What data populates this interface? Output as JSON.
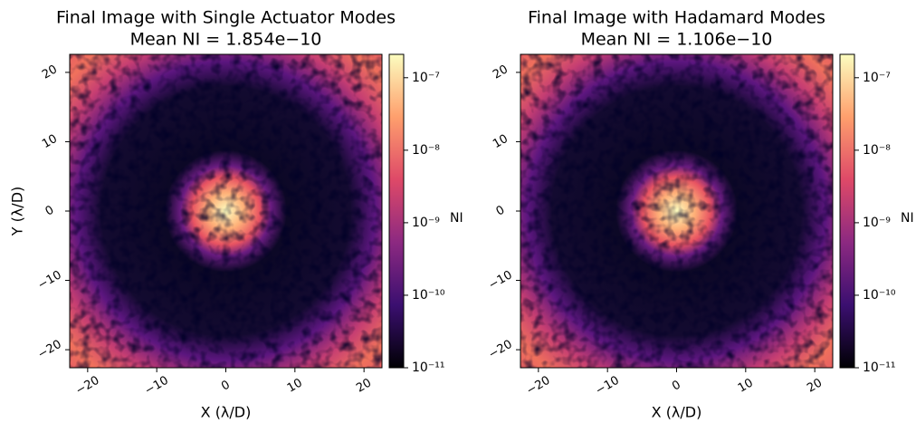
{
  "chart_data": [
    {
      "type": "heatmap",
      "title": "Final Image with Single Actuator Modes",
      "subtitle": "Mean NI = 1.854e−10",
      "xlabel": "X (λ/D)",
      "ylabel": "Y (λ/D)",
      "xlim": [
        -22.6,
        22.6
      ],
      "ylim": [
        -22.6,
        22.6
      ],
      "xticks": [
        {
          "value": -20,
          "label": "−20"
        },
        {
          "value": -10,
          "label": "−10"
        },
        0,
        10,
        20
      ],
      "yticks": [
        {
          "value": -20,
          "label": "−20"
        },
        {
          "value": -10,
          "label": "−10"
        },
        0,
        10,
        20
      ],
      "colorbar": {
        "label": "NI",
        "log_scale": true,
        "lim": [
          1e-11,
          2.1e-07
        ],
        "ticks": [
          {
            "value": 1e-11,
            "label": "10⁻¹¹"
          },
          {
            "value": 1e-10,
            "label": "10⁻¹⁰"
          },
          {
            "value": 1e-09,
            "label": "10⁻⁹"
          },
          {
            "value": 1e-08,
            "label": "10⁻⁸"
          },
          {
            "value": 1e-07,
            "label": "10⁻⁷"
          }
        ],
        "colormap": [
          "#000004",
          "#3b0f70",
          "#8c2981",
          "#de4968",
          "#fe9f6d",
          "#fcfdbf"
        ]
      }
    },
    {
      "type": "heatmap",
      "title": "Final Image with Hadamard Modes",
      "subtitle": "Mean NI = 1.106e−10",
      "xlabel": "X (λ/D)",
      "xlim": [
        -22.6,
        22.6
      ],
      "ylim": [
        -22.6,
        22.6
      ],
      "xticks": [
        {
          "value": -20,
          "label": "−20"
        },
        {
          "value": -10,
          "label": "−10"
        },
        0,
        10,
        20
      ],
      "yticks": [
        {
          "value": -20,
          "label": "−20"
        },
        {
          "value": -10,
          "label": "−10"
        },
        0,
        10,
        20
      ],
      "colorbar": {
        "label": "NI",
        "log_scale": true,
        "lim": [
          1e-11,
          2.1e-07
        ],
        "ticks": [
          {
            "value": 1e-11,
            "label": "10⁻¹¹"
          },
          {
            "value": 1e-10,
            "label": "10⁻¹⁰"
          },
          {
            "value": 1e-09,
            "label": "10⁻⁹"
          },
          {
            "value": 1e-08,
            "label": "10⁻⁸"
          },
          {
            "value": 1e-07,
            "label": "10⁻⁷"
          }
        ],
        "colormap": [
          "#000004",
          "#3b0f70",
          "#8c2981",
          "#de4968",
          "#fe9f6d",
          "#fcfdbf"
        ]
      }
    }
  ]
}
